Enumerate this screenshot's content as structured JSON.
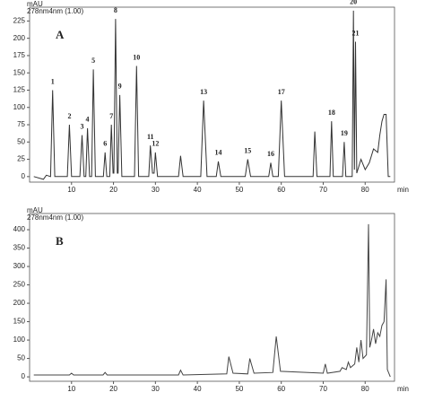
{
  "chart_data": [
    {
      "type": "line",
      "label": "A",
      "y_unit": "mAU",
      "channel": "278nm4nm (1.00)",
      "x_unit": "min",
      "x": [
        1,
        3.3,
        4,
        5,
        5.5,
        6,
        9,
        9.5,
        10,
        12,
        12.5,
        13,
        13.4,
        13.8,
        14.3,
        14.8,
        15.2,
        15.7,
        17.6,
        18,
        18.4,
        19.1,
        19.5,
        19.9,
        20.1,
        20.5,
        20.9,
        21.1,
        21.5,
        22,
        25,
        25.5,
        26,
        28.4,
        28.8,
        29.3,
        29.7,
        30,
        30.5,
        35.5,
        36,
        36.6,
        40.8,
        41.5,
        42.3,
        44.5,
        45,
        45.6,
        51.4,
        52,
        52.7,
        57,
        57.5,
        58,
        59.3,
        60,
        60.8,
        67.6,
        68,
        68.5,
        71.6,
        72,
        72.4,
        74.6,
        75,
        75.4,
        76.9,
        77.2,
        77.45,
        77.7,
        78,
        79,
        80,
        81,
        82,
        83,
        83.5,
        84,
        84.5,
        85,
        85.5,
        86
      ],
      "series": [
        {
          "color": "#333333",
          "values": [
            0,
            -4,
            2,
            0,
            125,
            0,
            0,
            75,
            0,
            0,
            60,
            0,
            0,
            70,
            0,
            0,
            155,
            0,
            0,
            35,
            0,
            0,
            75,
            5,
            5,
            228,
            5,
            5,
            118,
            0,
            0,
            160,
            0,
            0,
            45,
            5,
            5,
            35,
            0,
            0,
            30,
            0,
            0,
            110,
            0,
            0,
            22,
            0,
            0,
            25,
            0,
            0,
            20,
            0,
            0,
            110,
            0,
            0,
            65,
            0,
            0,
            80,
            0,
            0,
            50,
            0,
            0,
            240,
            10,
            195,
            5,
            25,
            10,
            20,
            40,
            35,
            60,
            80,
            90,
            90,
            0,
            0
          ],
          "point_labels": [
            null,
            null,
            null,
            null,
            "1",
            null,
            null,
            "2",
            null,
            null,
            "3",
            null,
            null,
            "4",
            null,
            null,
            "5",
            null,
            null,
            "6",
            null,
            null,
            "7",
            null,
            null,
            "8",
            null,
            null,
            "9",
            null,
            null,
            "10",
            null,
            null,
            "11",
            null,
            null,
            "12",
            null,
            null,
            null,
            null,
            null,
            "13",
            null,
            null,
            "14",
            null,
            null,
            "15",
            null,
            null,
            "16",
            null,
            null,
            "17",
            null,
            null,
            null,
            null,
            null,
            "18",
            null,
            null,
            "19",
            null,
            null,
            "20",
            null,
            "21",
            null,
            null,
            null,
            null,
            null,
            null,
            null,
            null,
            null,
            null,
            null,
            null
          ]
        }
      ],
      "xlim": [
        0,
        87
      ],
      "ylim": [
        -8,
        245
      ],
      "xticks": [
        10,
        20,
        30,
        40,
        50,
        60,
        70,
        80
      ],
      "yticks": [
        0,
        25,
        50,
        75,
        100,
        125,
        150,
        175,
        200,
        225
      ]
    },
    {
      "type": "line",
      "label": "B",
      "y_unit": "mAU",
      "channel": "278nm4nm (1.00)",
      "x_unit": "min",
      "x": [
        1,
        9.5,
        10,
        10.5,
        17.5,
        18,
        18.5,
        35.5,
        36,
        36.6,
        47,
        47.5,
        48.5,
        52,
        52.5,
        53.5,
        58,
        58.8,
        59.8,
        70,
        70.5,
        71,
        74,
        74.5,
        75.5,
        76,
        76.5,
        77.5,
        78,
        78.5,
        79,
        79.5,
        80.3,
        80.8,
        81.1,
        81.5,
        82,
        82.5,
        83,
        83.5,
        84,
        84.5,
        85,
        85.3,
        86
      ],
      "series": [
        {
          "color": "#444444",
          "values": [
            5,
            5,
            10,
            5,
            5,
            12,
            5,
            5,
            18,
            5,
            8,
            55,
            10,
            8,
            50,
            10,
            12,
            110,
            15,
            10,
            35,
            10,
            15,
            25,
            20,
            40,
            25,
            35,
            80,
            40,
            100,
            50,
            60,
            415,
            80,
            100,
            130,
            90,
            120,
            110,
            140,
            150,
            265,
            20,
            0
          ]
        }
      ],
      "xlim": [
        0,
        87
      ],
      "ylim": [
        -12,
        444
      ],
      "xticks": [
        10,
        20,
        30,
        40,
        50,
        60,
        70,
        80
      ],
      "yticks": [
        0,
        50,
        100,
        150,
        200,
        250,
        300,
        350,
        400
      ]
    }
  ]
}
